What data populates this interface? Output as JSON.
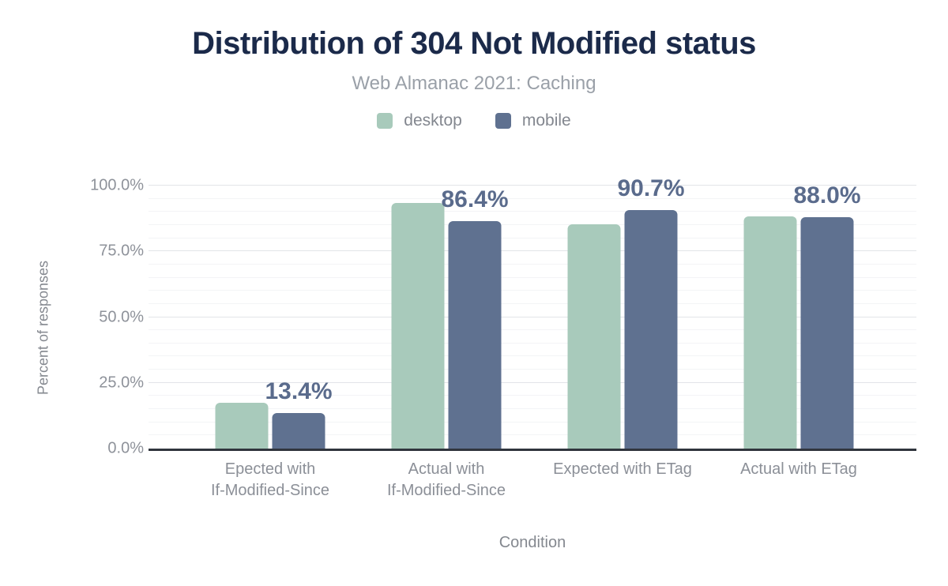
{
  "title": "Distribution of 304 Not Modified status",
  "subtitle": "Web Almanac 2021: Caching",
  "legend": [
    {
      "label": "desktop",
      "color": "#a8cabb"
    },
    {
      "label": "mobile",
      "color": "#5f7190"
    }
  ],
  "y_axis": {
    "title": "Percent of responses",
    "ticks": [
      {
        "label": "0.0%",
        "value": 0
      },
      {
        "label": "25.0%",
        "value": 25
      },
      {
        "label": "50.0%",
        "value": 50
      },
      {
        "label": "75.0%",
        "value": 75
      },
      {
        "label": "100.0%",
        "value": 100
      }
    ],
    "minor_step": 5,
    "major_step": 25
  },
  "x_axis": {
    "title": "Condition"
  },
  "colors": {
    "title": "#1b2a4a",
    "subtitle": "#9aa0a8",
    "value_label": "#5a6b8c",
    "axis_baseline": "#30353d"
  },
  "chart_data": {
    "type": "bar",
    "title": "Distribution of 304 Not Modified status",
    "subtitle": "Web Almanac 2021: Caching",
    "categories": [
      "Epected with\nIf-Modified-Since",
      "Actual with\nIf-Modified-Since",
      "Expected with ETag",
      "Actual with ETag"
    ],
    "series": [
      {
        "name": "desktop",
        "color": "#a8cabb",
        "values": [
          17.4,
          93.4,
          85.4,
          88.4
        ]
      },
      {
        "name": "mobile",
        "color": "#5f7190",
        "values": [
          13.4,
          86.4,
          90.7,
          88.0
        ]
      }
    ],
    "value_labels": {
      "series": "mobile",
      "texts": [
        "13.4%",
        "86.4%",
        "90.7%",
        "88.0%"
      ]
    },
    "xlabel": "Condition",
    "ylabel": "Percent of responses",
    "ylim": [
      0,
      100
    ],
    "grid": {
      "minor_every": 5,
      "major_every": 25
    },
    "legend_position": "top"
  }
}
